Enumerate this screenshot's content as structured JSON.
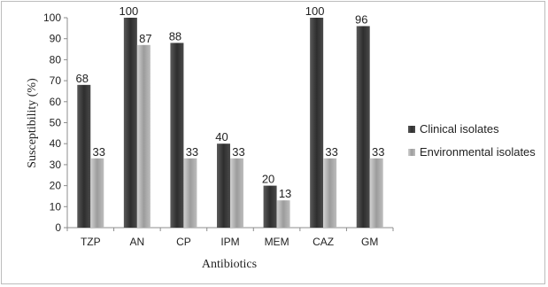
{
  "chart_data": {
    "type": "bar",
    "title": "",
    "xlabel": "Antibiotics",
    "ylabel": "Susceptibility (%)",
    "ylim": [
      0,
      100
    ],
    "yticks": [
      0,
      10,
      20,
      30,
      40,
      50,
      60,
      70,
      80,
      90,
      100
    ],
    "grid": false,
    "legend_position": "right",
    "categories": [
      "TZP",
      "AN",
      "CP",
      "IPM",
      "MEM",
      "CAZ",
      "GM"
    ],
    "series": [
      {
        "name": "Clinical isolates",
        "values": [
          68,
          100,
          88,
          40,
          20,
          100,
          96
        ],
        "color": "#3a3a3a"
      },
      {
        "name": "Environmental isolates",
        "values": [
          33,
          87,
          33,
          33,
          13,
          33,
          33
        ],
        "color": "#b4b4b4"
      }
    ]
  }
}
